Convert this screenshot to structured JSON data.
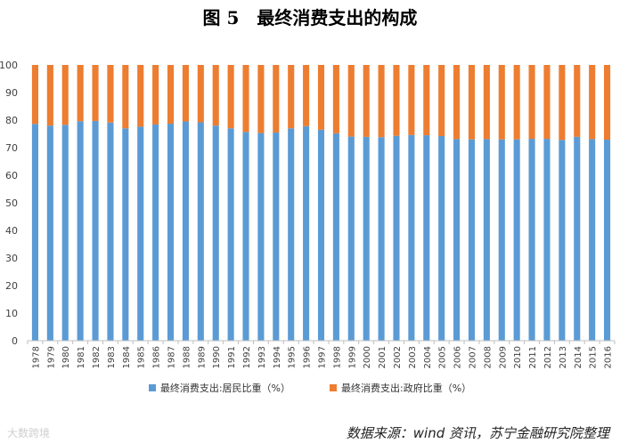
{
  "figure": {
    "title": "图 5　最终消费支出的构成",
    "source": "数据来源：wind 资讯，苏宁金融研究院整理",
    "watermark": "大数跨境"
  },
  "colors": {
    "resident": "#5b9bd5",
    "government": "#ed7d31",
    "axis": "#bfbfbf",
    "text": "#404040"
  },
  "chart_data": {
    "type": "bar",
    "stacked": true,
    "title": "图 5　最终消费支出的构成",
    "xlabel": "",
    "ylabel": "",
    "ylim": [
      0,
      100
    ],
    "yticks": [
      0,
      10,
      20,
      30,
      40,
      50,
      60,
      70,
      80,
      90,
      100
    ],
    "grid": false,
    "legend_position": "bottom",
    "categories": [
      "1978",
      "1979",
      "1980",
      "1981",
      "1982",
      "1983",
      "1984",
      "1985",
      "1986",
      "1987",
      "1988",
      "1989",
      "1990",
      "1991",
      "1992",
      "1993",
      "1994",
      "1995",
      "1996",
      "1997",
      "1998",
      "1999",
      "2000",
      "2001",
      "2002",
      "2003",
      "2004",
      "2005",
      "2006",
      "2007",
      "2008",
      "2009",
      "2010",
      "2011",
      "2012",
      "2013",
      "2014",
      "2015",
      "2016"
    ],
    "series": [
      {
        "name": "最终消费支出:居民比重（%）",
        "values": [
          78.6,
          78.0,
          78.3,
          79.6,
          79.7,
          79.1,
          77.0,
          77.6,
          78.4,
          78.7,
          79.5,
          79.2,
          78.0,
          77.0,
          75.7,
          75.3,
          75.5,
          77.0,
          77.8,
          76.5,
          75.2,
          74.0,
          73.9,
          73.8,
          74.3,
          74.6,
          74.5,
          74.2,
          73.1,
          73.0,
          73.1,
          73.0,
          73.0,
          73.2,
          73.2,
          72.8,
          73.9,
          73.1,
          72.9
        ]
      },
      {
        "name": "最终消费支出:政府比重（%）",
        "values": [
          21.4,
          22.0,
          21.7,
          20.4,
          20.3,
          20.9,
          23.0,
          22.4,
          21.6,
          21.3,
          20.5,
          20.8,
          22.0,
          23.0,
          24.3,
          24.7,
          24.5,
          23.0,
          22.2,
          23.5,
          24.8,
          26.0,
          26.1,
          26.2,
          25.7,
          25.4,
          25.5,
          25.8,
          26.9,
          27.0,
          26.9,
          27.0,
          27.0,
          26.8,
          26.8,
          27.2,
          26.1,
          26.9,
          27.1
        ]
      }
    ]
  }
}
